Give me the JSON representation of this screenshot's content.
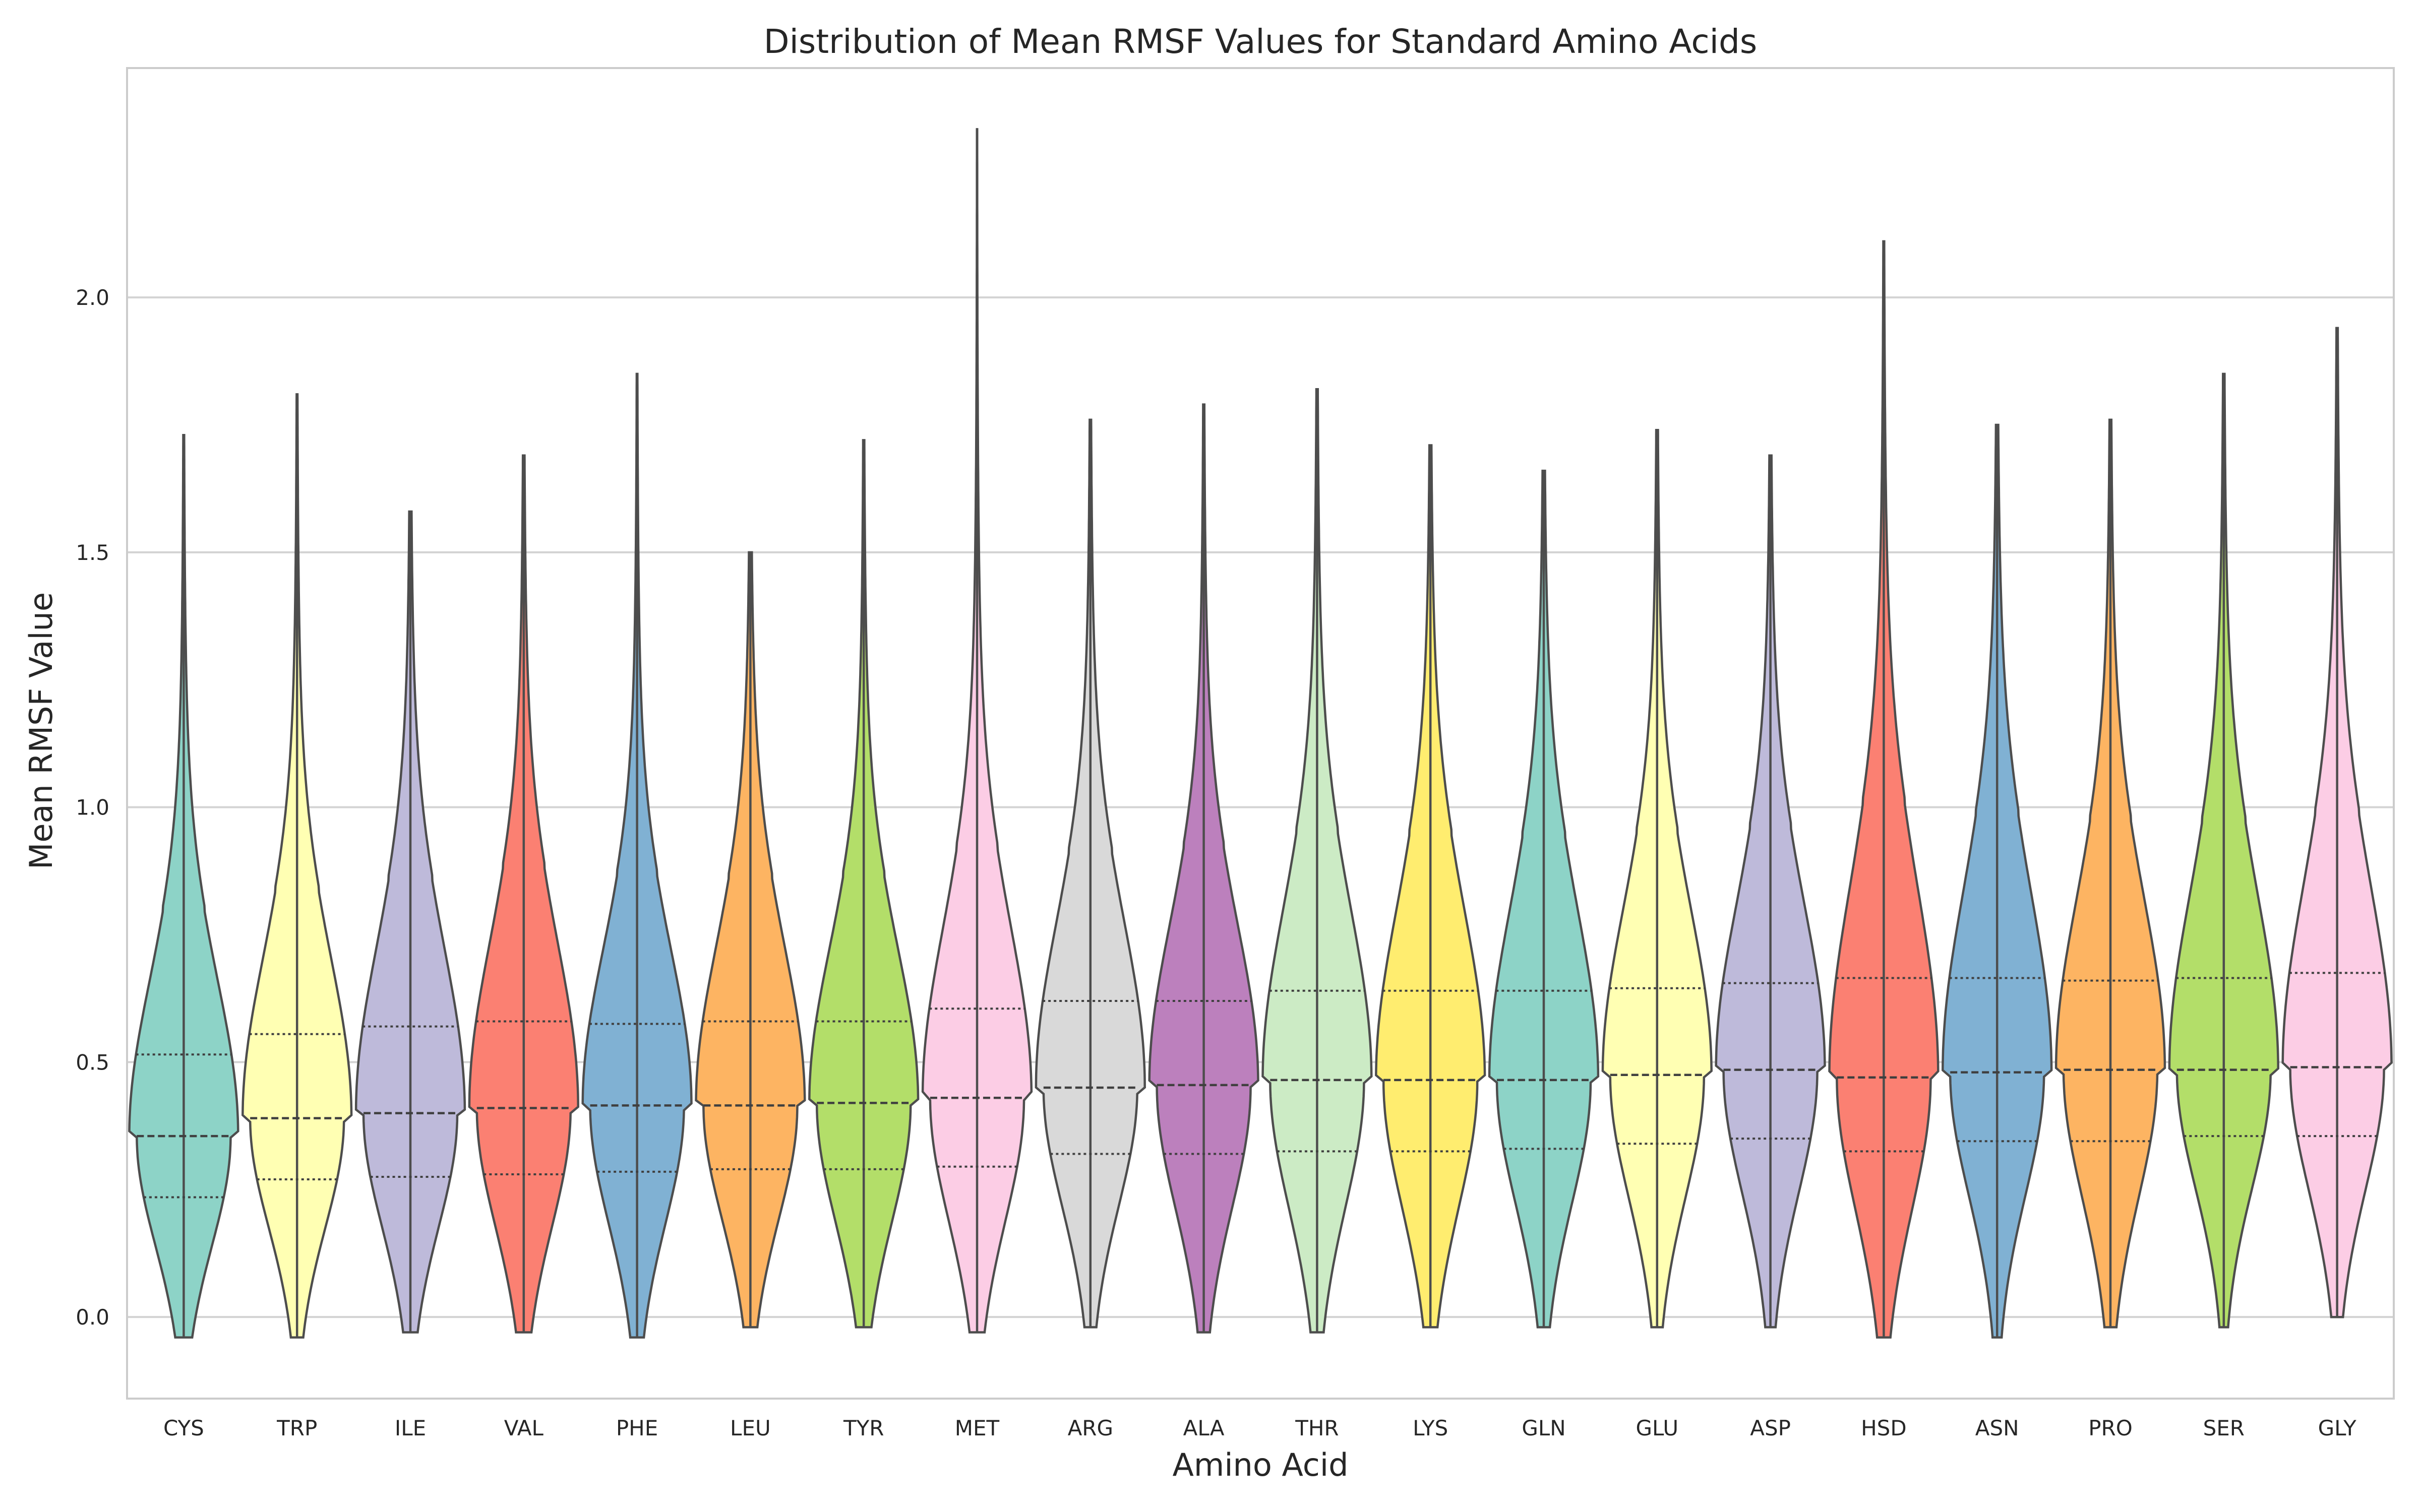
{
  "chart_data": {
    "type": "violin",
    "title": "Distribution of Mean RMSF Values for Standard Amino Acids",
    "xlabel": "Amino Acid",
    "ylabel": "Mean RMSF Value",
    "ylim": [
      -0.16,
      2.45
    ],
    "yticks": [
      0.0,
      0.5,
      1.0,
      1.5,
      2.0
    ],
    "ytick_labels": [
      "0.0",
      "0.5",
      "1.0",
      "1.5",
      "2.0"
    ],
    "grid": "horizontal",
    "categories": [
      {
        "name": "CYS",
        "color": "#8dd3c7",
        "min": -0.04,
        "max": 1.73,
        "q1": 0.235,
        "median": 0.355,
        "q3": 0.515
      },
      {
        "name": "TRP",
        "color": "#ffffb3",
        "min": -0.04,
        "max": 1.81,
        "q1": 0.27,
        "median": 0.39,
        "q3": 0.555
      },
      {
        "name": "ILE",
        "color": "#bebada",
        "min": -0.03,
        "max": 1.58,
        "q1": 0.275,
        "median": 0.4,
        "q3": 0.57
      },
      {
        "name": "VAL",
        "color": "#fb8072",
        "min": -0.03,
        "max": 1.69,
        "q1": 0.28,
        "median": 0.41,
        "q3": 0.58
      },
      {
        "name": "PHE",
        "color": "#80b1d3",
        "min": -0.04,
        "max": 1.85,
        "q1": 0.285,
        "median": 0.415,
        "q3": 0.575
      },
      {
        "name": "LEU",
        "color": "#fdb462",
        "min": -0.02,
        "max": 1.5,
        "q1": 0.29,
        "median": 0.415,
        "q3": 0.58
      },
      {
        "name": "TYR",
        "color": "#b3de69",
        "min": -0.02,
        "max": 1.72,
        "q1": 0.29,
        "median": 0.42,
        "q3": 0.58
      },
      {
        "name": "MET",
        "color": "#fccde5",
        "min": -0.03,
        "max": 2.33,
        "q1": 0.295,
        "median": 0.43,
        "q3": 0.605
      },
      {
        "name": "ARG",
        "color": "#d9d9d9",
        "min": -0.02,
        "max": 1.76,
        "q1": 0.32,
        "median": 0.45,
        "q3": 0.62
      },
      {
        "name": "ALA",
        "color": "#bc80bd",
        "min": -0.03,
        "max": 1.79,
        "q1": 0.32,
        "median": 0.455,
        "q3": 0.62
      },
      {
        "name": "THR",
        "color": "#ccebc5",
        "min": -0.03,
        "max": 1.82,
        "q1": 0.325,
        "median": 0.465,
        "q3": 0.64
      },
      {
        "name": "LYS",
        "color": "#ffed6f",
        "min": -0.02,
        "max": 1.71,
        "q1": 0.325,
        "median": 0.465,
        "q3": 0.64
      },
      {
        "name": "GLN",
        "color": "#8dd3c7",
        "min": -0.02,
        "max": 1.66,
        "q1": 0.33,
        "median": 0.465,
        "q3": 0.64
      },
      {
        "name": "GLU",
        "color": "#ffffb3",
        "min": -0.02,
        "max": 1.74,
        "q1": 0.34,
        "median": 0.475,
        "q3": 0.645
      },
      {
        "name": "ASP",
        "color": "#bebada",
        "min": -0.02,
        "max": 1.69,
        "q1": 0.35,
        "median": 0.485,
        "q3": 0.655
      },
      {
        "name": "HSD",
        "color": "#fb8072",
        "min": -0.04,
        "max": 2.11,
        "q1": 0.325,
        "median": 0.47,
        "q3": 0.665
      },
      {
        "name": "ASN",
        "color": "#80b1d3",
        "min": -0.04,
        "max": 1.75,
        "q1": 0.345,
        "median": 0.48,
        "q3": 0.665
      },
      {
        "name": "PRO",
        "color": "#fdb462",
        "min": -0.02,
        "max": 1.76,
        "q1": 0.345,
        "median": 0.485,
        "q3": 0.66
      },
      {
        "name": "SER",
        "color": "#b3de69",
        "min": -0.02,
        "max": 1.85,
        "q1": 0.355,
        "median": 0.485,
        "q3": 0.665
      },
      {
        "name": "GLY",
        "color": "#fccde5",
        "min": 0.0,
        "max": 1.94,
        "q1": 0.355,
        "median": 0.49,
        "q3": 0.675
      }
    ]
  }
}
